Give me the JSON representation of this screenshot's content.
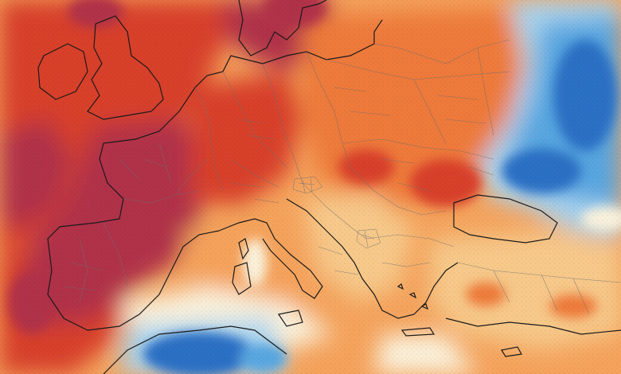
{
  "map": {
    "kind": "temperature-anomaly",
    "region": "Europe",
    "colors": {
      "strong_warm": "#b0334a",
      "warm_red": "#d8402a",
      "warm_orange": "#ee7a3a",
      "mild_orange": "#f5a35c",
      "slight_warm": "#f7c98a",
      "neutral": "#fbf2dc",
      "cool_light": "#a9d4ef",
      "cool_mid": "#58a6e0",
      "cool_dark": "#2a6fc4",
      "coast_line": "#1a1a1a",
      "border_line": "#6e6e6e"
    },
    "labels": []
  }
}
